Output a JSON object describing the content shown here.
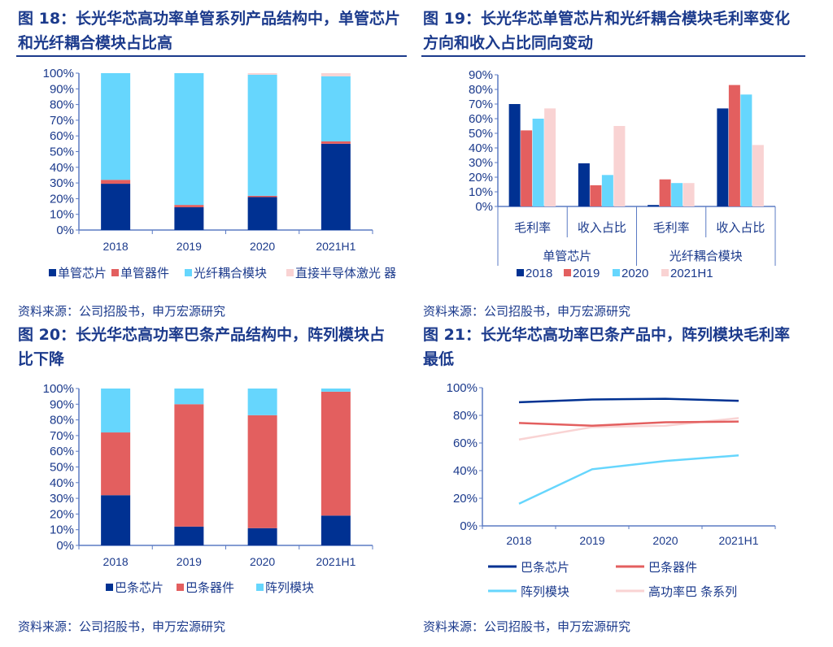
{
  "colors": {
    "navy": "#003192",
    "red": "#e35f5f",
    "cyan": "#66d6fd",
    "pink": "#f9d3d3",
    "axis": "#5b7bc4",
    "text": "#1b3a8c"
  },
  "figures": [
    {
      "title": "图 18：长光华芯高功率单管系列产品结构中，单管芯片和光纤耦合模块占比高",
      "source": "资料来源：公司招股书，申万宏源研究"
    },
    {
      "title": "图 19：长光华芯单管芯片和光纤耦合模块毛利率变化方向和收入占比同向变动",
      "source": "资料来源：公司招股书，申万宏源研究"
    },
    {
      "title": "图 20：长光华芯高功率巴条产品结构中，阵列模块占比下降",
      "source": "资料来源：公司招股书，申万宏源研究"
    },
    {
      "title": "图 21：长光华芯高功率巴条产品中，阵列模块毛利率最低",
      "source": "资料来源：公司招股书，申万宏源研究"
    }
  ],
  "chart_data": [
    {
      "type": "bar",
      "stacked": true,
      "categories": [
        "2018",
        "2019",
        "2020",
        "2021H1"
      ],
      "ylim": [
        0,
        100
      ],
      "yticks": [
        "0%",
        "10%",
        "20%",
        "30%",
        "40%",
        "50%",
        "60%",
        "70%",
        "80%",
        "90%",
        "100%"
      ],
      "legend": "bottom",
      "series": [
        {
          "name": "单管芯片",
          "color": "#003192",
          "values": [
            29.5,
            14.5,
            21,
            55
          ]
        },
        {
          "name": "单管器件",
          "color": "#e35f5f",
          "values": [
            2.5,
            1.5,
            0.8,
            1.5
          ]
        },
        {
          "name": "光纤耦合模块",
          "color": "#66d6fd",
          "values": [
            68,
            84,
            77.2,
            41.5
          ]
        },
        {
          "name": "直接半导体激光 器",
          "color": "#f9d3d3",
          "values": [
            0,
            0,
            1,
            2
          ]
        }
      ]
    },
    {
      "type": "bar",
      "stacked": false,
      "categories": [
        "毛利率",
        "收入占比",
        "毛利率",
        "收入占比"
      ],
      "groups": [
        "单管芯片",
        "光纤耦合模块"
      ],
      "ylim": [
        0,
        90
      ],
      "yticks": [
        "0%",
        "10%",
        "20%",
        "30%",
        "40%",
        "50%",
        "60%",
        "70%",
        "80%",
        "90%"
      ],
      "legend": "bottom",
      "series": [
        {
          "name": "2018",
          "color": "#003192",
          "values": [
            70,
            29.5,
            1,
            67
          ]
        },
        {
          "name": "2019",
          "color": "#e35f5f",
          "values": [
            52,
            14.5,
            18.5,
            83
          ]
        },
        {
          "name": "2020",
          "color": "#66d6fd",
          "values": [
            60,
            21.5,
            16,
            76.5
          ]
        },
        {
          "name": "2021H1",
          "color": "#f9d3d3",
          "values": [
            67,
            55,
            16,
            42
          ]
        }
      ]
    },
    {
      "type": "bar",
      "stacked": true,
      "categories": [
        "2018",
        "2019",
        "2020",
        "2021H1"
      ],
      "ylim": [
        0,
        100
      ],
      "yticks": [
        "0%",
        "10%",
        "20%",
        "30%",
        "40%",
        "50%",
        "60%",
        "70%",
        "80%",
        "90%",
        "100%"
      ],
      "legend": "bottom",
      "series": [
        {
          "name": "巴条芯片",
          "color": "#003192",
          "values": [
            32,
            12,
            11,
            19
          ]
        },
        {
          "name": "巴条器件",
          "color": "#e35f5f",
          "values": [
            40,
            78,
            72,
            79
          ]
        },
        {
          "name": "阵列模块",
          "color": "#66d6fd",
          "values": [
            28,
            10,
            17,
            2
          ]
        }
      ]
    },
    {
      "type": "line",
      "categories": [
        "2018",
        "2019",
        "2020",
        "2021H1"
      ],
      "ylim": [
        0,
        100
      ],
      "yticks": [
        "0%",
        "20%",
        "40%",
        "60%",
        "80%",
        "100%"
      ],
      "legend": "bottom",
      "series": [
        {
          "name": "巴条芯片",
          "color": "#003192",
          "values": [
            89.5,
            91.5,
            92,
            90.5
          ]
        },
        {
          "name": "巴条器件",
          "color": "#e35f5f",
          "values": [
            74.5,
            72.5,
            75,
            75.5
          ]
        },
        {
          "name": "阵列模块",
          "color": "#66d6fd",
          "values": [
            16,
            41,
            47,
            51
          ]
        },
        {
          "name": "高功率巴 条系列",
          "color": "#f9d3d3",
          "values": [
            62.5,
            71.5,
            72.5,
            78
          ]
        }
      ]
    }
  ]
}
